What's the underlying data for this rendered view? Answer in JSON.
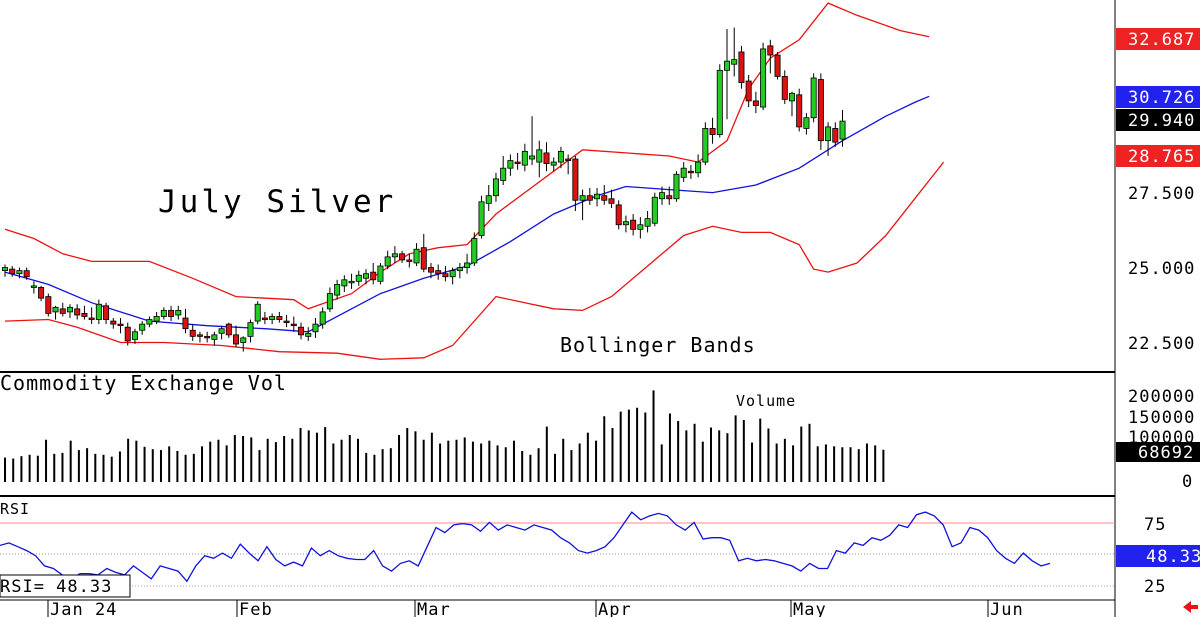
{
  "chart_data": [
    {
      "type": "candlestick",
      "title": "July Silver",
      "annotation": "Bollinger Bands",
      "y_ticks": [
        "22.500",
        "25.000",
        "27.500"
      ],
      "ylim": [
        21.8,
        33.9
      ],
      "x_month_labels": [
        "Jan 24",
        "Feb",
        "Mar",
        "Apr",
        "May",
        "Jun"
      ],
      "price_tags": {
        "upper_band": "32.687",
        "middle_band": "30.726",
        "last": "29.940",
        "lower_band": "28.765"
      },
      "colors": {
        "up": "#22cc22",
        "down": "#dd1111",
        "bands": "#ee1111",
        "ma": "#1111dd",
        "tag_red": "#ee2222",
        "tag_blue": "#2222ee",
        "tag_black": "#000000"
      },
      "candles": [
        [
          25.05,
          25.25,
          24.85,
          25.15
        ],
        [
          25.1,
          25.2,
          24.85,
          24.95
        ],
        [
          24.95,
          25.15,
          24.8,
          25.05
        ],
        [
          25.05,
          25.15,
          24.75,
          24.85
        ],
        [
          24.5,
          24.7,
          24.3,
          24.55
        ],
        [
          24.5,
          24.55,
          24.05,
          24.15
        ],
        [
          24.2,
          24.3,
          23.55,
          23.65
        ],
        [
          23.7,
          23.9,
          23.45,
          23.85
        ],
        [
          23.8,
          24.0,
          23.55,
          23.65
        ],
        [
          23.7,
          23.95,
          23.5,
          23.85
        ],
        [
          23.8,
          23.95,
          23.45,
          23.6
        ],
        [
          23.65,
          23.9,
          23.45,
          23.55
        ],
        [
          23.5,
          23.85,
          23.3,
          23.45
        ],
        [
          23.45,
          24.1,
          23.3,
          23.95
        ],
        [
          23.9,
          24.0,
          23.3,
          23.45
        ],
        [
          23.4,
          23.5,
          23.15,
          23.3
        ],
        [
          23.3,
          23.5,
          23.0,
          23.25
        ],
        [
          23.2,
          23.35,
          22.6,
          22.75
        ],
        [
          22.8,
          23.15,
          22.65,
          23.05
        ],
        [
          23.1,
          23.4,
          22.95,
          23.3
        ],
        [
          23.3,
          23.55,
          23.2,
          23.45
        ],
        [
          23.4,
          23.7,
          23.3,
          23.55
        ],
        [
          23.55,
          23.85,
          23.45,
          23.75
        ],
        [
          23.75,
          23.9,
          23.4,
          23.55
        ],
        [
          23.6,
          23.9,
          23.45,
          23.75
        ],
        [
          23.5,
          23.8,
          23.0,
          23.15
        ],
        [
          23.1,
          23.3,
          22.75,
          22.9
        ],
        [
          22.95,
          23.05,
          22.7,
          22.9
        ],
        [
          22.9,
          23.05,
          22.7,
          22.85
        ],
        [
          22.8,
          23.05,
          22.6,
          22.95
        ],
        [
          23.0,
          23.25,
          22.8,
          23.15
        ],
        [
          23.3,
          23.35,
          22.85,
          22.95
        ],
        [
          22.95,
          23.25,
          22.55,
          22.65
        ],
        [
          22.7,
          22.9,
          22.4,
          22.85
        ],
        [
          22.9,
          23.45,
          22.7,
          23.35
        ],
        [
          23.4,
          24.05,
          23.3,
          23.95
        ],
        [
          23.5,
          23.7,
          23.3,
          23.45
        ],
        [
          23.45,
          23.65,
          23.3,
          23.55
        ],
        [
          23.55,
          23.7,
          23.35,
          23.45
        ],
        [
          23.4,
          23.6,
          23.2,
          23.35
        ],
        [
          23.3,
          23.55,
          23.05,
          23.25
        ],
        [
          23.2,
          23.35,
          22.8,
          22.95
        ],
        [
          22.9,
          23.2,
          22.75,
          23.0
        ],
        [
          23.05,
          23.5,
          22.85,
          23.3
        ],
        [
          23.3,
          23.85,
          23.15,
          23.7
        ],
        [
          23.8,
          24.5,
          23.7,
          24.3
        ],
        [
          24.25,
          24.75,
          24.1,
          24.6
        ],
        [
          24.55,
          24.9,
          24.35,
          24.75
        ],
        [
          24.65,
          24.95,
          24.45,
          24.7
        ],
        [
          24.7,
          25.05,
          24.55,
          24.9
        ],
        [
          24.8,
          25.1,
          24.6,
          24.95
        ],
        [
          25.0,
          25.3,
          24.6,
          24.75
        ],
        [
          24.7,
          25.3,
          24.6,
          25.2
        ],
        [
          25.2,
          25.7,
          25.1,
          25.5
        ],
        [
          25.5,
          25.85,
          25.3,
          25.6
        ],
        [
          25.6,
          25.7,
          25.3,
          25.4
        ],
        [
          25.4,
          25.6,
          25.15,
          25.35
        ],
        [
          25.3,
          25.95,
          25.2,
          25.75
        ],
        [
          25.8,
          26.25,
          25.0,
          25.1
        ],
        [
          25.15,
          25.3,
          24.8,
          25.0
        ],
        [
          25.05,
          25.25,
          24.75,
          24.95
        ],
        [
          24.95,
          25.2,
          24.7,
          24.85
        ],
        [
          24.85,
          25.15,
          24.6,
          25.05
        ],
        [
          25.05,
          25.3,
          24.8,
          25.15
        ],
        [
          25.15,
          25.6,
          24.95,
          25.3
        ],
        [
          25.3,
          26.3,
          25.2,
          26.1
        ],
        [
          26.2,
          27.5,
          26.1,
          27.3
        ],
        [
          27.25,
          27.85,
          27.0,
          27.5
        ],
        [
          27.5,
          28.25,
          27.3,
          28.05
        ],
        [
          28.0,
          28.8,
          27.85,
          28.4
        ],
        [
          28.4,
          28.85,
          28.15,
          28.65
        ],
        [
          28.6,
          28.9,
          28.35,
          28.55
        ],
        [
          28.5,
          29.2,
          28.3,
          28.95
        ],
        [
          28.7,
          30.1,
          28.5,
          28.8
        ],
        [
          28.6,
          29.3,
          28.1,
          29.0
        ],
        [
          28.9,
          29.25,
          28.3,
          28.55
        ],
        [
          28.5,
          28.75,
          28.3,
          28.6
        ],
        [
          28.6,
          29.1,
          28.4,
          28.95
        ],
        [
          28.7,
          28.85,
          28.2,
          28.65
        ],
        [
          28.7,
          28.8,
          27.0,
          27.35
        ],
        [
          27.35,
          27.7,
          26.7,
          27.5
        ],
        [
          27.5,
          27.75,
          27.2,
          27.35
        ],
        [
          27.4,
          27.75,
          27.15,
          27.55
        ],
        [
          27.5,
          27.85,
          27.2,
          27.35
        ],
        [
          27.4,
          27.7,
          27.1,
          27.25
        ],
        [
          27.2,
          27.35,
          26.4,
          26.55
        ],
        [
          26.55,
          26.85,
          26.3,
          26.65
        ],
        [
          26.7,
          26.9,
          26.2,
          26.4
        ],
        [
          26.4,
          26.8,
          26.1,
          26.55
        ],
        [
          26.5,
          27.0,
          26.3,
          26.75
        ],
        [
          26.6,
          27.6,
          26.5,
          27.45
        ],
        [
          27.4,
          27.8,
          27.2,
          27.6
        ],
        [
          27.5,
          27.8,
          27.2,
          27.4
        ],
        [
          27.4,
          28.3,
          27.3,
          28.2
        ],
        [
          28.1,
          28.6,
          27.95,
          28.4
        ],
        [
          28.3,
          28.5,
          28.05,
          28.25
        ],
        [
          28.25,
          28.85,
          28.1,
          28.6
        ],
        [
          28.6,
          29.9,
          28.5,
          29.7
        ],
        [
          29.7,
          30.05,
          29.2,
          29.5
        ],
        [
          29.5,
          31.8,
          29.4,
          31.6
        ],
        [
          31.6,
          32.95,
          30.0,
          31.9
        ],
        [
          31.8,
          33.0,
          31.4,
          31.95
        ],
        [
          32.2,
          32.4,
          31.0,
          31.2
        ],
        [
          31.25,
          31.45,
          30.4,
          30.6
        ],
        [
          30.6,
          30.9,
          30.2,
          30.45
        ],
        [
          30.4,
          32.5,
          30.3,
          32.3
        ],
        [
          32.4,
          32.6,
          31.5,
          32.1
        ],
        [
          32.1,
          32.2,
          31.3,
          31.4
        ],
        [
          31.4,
          31.6,
          30.5,
          30.65
        ],
        [
          30.6,
          30.9,
          30.1,
          30.85
        ],
        [
          30.8,
          31.0,
          29.6,
          29.75
        ],
        [
          29.7,
          30.2,
          29.5,
          30.05
        ],
        [
          30.05,
          31.5,
          29.9,
          31.35
        ],
        [
          31.3,
          31.5,
          29.0,
          29.3
        ],
        [
          29.3,
          29.9,
          28.8,
          29.75
        ],
        [
          29.7,
          29.9,
          29.1,
          29.25
        ],
        [
          29.35,
          30.3,
          29.1,
          29.94
        ]
      ],
      "upper_band": [
        [
          0,
          26.4
        ],
        [
          4,
          26.1
        ],
        [
          8,
          25.6
        ],
        [
          12,
          25.35
        ],
        [
          20,
          25.35
        ],
        [
          26,
          24.8
        ],
        [
          32,
          24.2
        ],
        [
          40,
          24.1
        ],
        [
          42,
          23.8
        ],
        [
          48,
          24.3
        ],
        [
          52,
          25.0
        ],
        [
          56,
          25.6
        ],
        [
          60,
          25.8
        ],
        [
          64,
          25.9
        ],
        [
          68,
          26.9
        ],
        [
          72,
          27.6
        ],
        [
          76,
          28.3
        ],
        [
          80,
          29.0
        ],
        [
          86,
          28.9
        ],
        [
          92,
          28.8
        ],
        [
          96,
          28.6
        ],
        [
          100,
          29.3
        ],
        [
          103,
          31.0
        ],
        [
          106,
          32.0
        ],
        [
          110,
          32.6
        ],
        [
          114,
          33.8
        ],
        [
          118,
          33.4
        ],
        [
          124,
          32.9
        ],
        [
          128,
          32.7
        ]
      ],
      "middle_band": [
        [
          0,
          25.0
        ],
        [
          6,
          24.6
        ],
        [
          12,
          24.0
        ],
        [
          20,
          23.4
        ],
        [
          28,
          23.25
        ],
        [
          36,
          23.15
        ],
        [
          42,
          23.05
        ],
        [
          48,
          23.8
        ],
        [
          52,
          24.3
        ],
        [
          58,
          24.8
        ],
        [
          64,
          25.2
        ],
        [
          70,
          26.0
        ],
        [
          76,
          26.9
        ],
        [
          82,
          27.5
        ],
        [
          86,
          27.8
        ],
        [
          92,
          27.7
        ],
        [
          98,
          27.6
        ],
        [
          104,
          27.85
        ],
        [
          110,
          28.4
        ],
        [
          116,
          29.3
        ],
        [
          122,
          30.1
        ],
        [
          126,
          30.55
        ],
        [
          128,
          30.75
        ]
      ],
      "lower_band": [
        [
          0,
          23.4
        ],
        [
          6,
          23.45
        ],
        [
          10,
          23.2
        ],
        [
          16,
          22.7
        ],
        [
          22,
          22.7
        ],
        [
          30,
          22.6
        ],
        [
          38,
          22.4
        ],
        [
          46,
          22.35
        ],
        [
          52,
          22.15
        ],
        [
          58,
          22.2
        ],
        [
          62,
          22.6
        ],
        [
          68,
          24.2
        ],
        [
          72,
          24.0
        ],
        [
          76,
          23.8
        ],
        [
          80,
          23.75
        ],
        [
          84,
          24.2
        ],
        [
          88,
          25.0
        ],
        [
          94,
          26.2
        ],
        [
          98,
          26.5
        ],
        [
          102,
          26.3
        ],
        [
          106,
          26.3
        ],
        [
          110,
          25.9
        ],
        [
          112,
          25.1
        ],
        [
          114,
          25.0
        ],
        [
          118,
          25.3
        ],
        [
          122,
          26.2
        ],
        [
          126,
          27.4
        ],
        [
          128,
          28.0
        ],
        [
          130,
          28.6
        ]
      ]
    },
    {
      "type": "bar",
      "title": "Commodity Exchange Vol",
      "annotation": "Volume",
      "y_ticks": [
        "200000",
        "150000",
        "100000",
        "0"
      ],
      "ylim": [
        0,
        230000
      ],
      "last_tag": "68692",
      "values": [
        52000,
        50000,
        55000,
        58000,
        56000,
        90000,
        60000,
        62000,
        88000,
        68000,
        72000,
        60000,
        58000,
        54000,
        65000,
        92000,
        88000,
        75000,
        70000,
        68000,
        76000,
        66000,
        58000,
        60000,
        76000,
        86000,
        90000,
        78000,
        100000,
        98000,
        95000,
        68000,
        92000,
        85000,
        98000,
        92000,
        115000,
        110000,
        105000,
        117000,
        82000,
        90000,
        100000,
        92000,
        62000,
        58000,
        70000,
        72000,
        100000,
        115000,
        108000,
        90000,
        105000,
        82000,
        88000,
        90000,
        95000,
        86000,
        82000,
        88000,
        78000,
        74000,
        88000,
        66000,
        58000,
        72000,
        118000,
        60000,
        92000,
        68000,
        82000,
        105000,
        88000,
        140000,
        115000,
        150000,
        154000,
        158000,
        148000,
        195000,
        80000,
        146000,
        130000,
        110000,
        124000,
        86000,
        116000,
        110000,
        104000,
        142000,
        132000,
        84000,
        135000,
        114000,
        82000,
        92000,
        78000,
        118000,
        124000,
        76000,
        80000,
        76000,
        74000,
        74000,
        70000,
        82000,
        78000,
        68692
      ]
    },
    {
      "type": "line",
      "title": "RSI",
      "y_ticks": [
        "75",
        "25"
      ],
      "ylim": [
        15,
        93
      ],
      "readout": "RSI=   48.33",
      "last_tag": "48.33",
      "values": [
        56,
        58,
        55,
        52,
        48,
        40,
        38,
        33,
        30,
        34,
        34,
        33,
        38,
        35,
        33,
        40,
        35,
        30,
        40,
        38,
        36,
        28,
        40,
        48,
        46,
        50,
        46,
        57,
        50,
        44,
        55,
        45,
        40,
        43,
        40,
        54,
        48,
        52,
        48,
        46,
        45,
        45,
        52,
        40,
        36,
        42,
        44,
        40,
        55,
        70,
        66,
        72,
        73,
        72,
        67,
        74,
        68,
        72,
        70,
        68,
        72,
        70,
        68,
        62,
        58,
        52,
        50,
        52,
        55,
        62,
        72,
        82,
        76,
        79,
        81,
        79,
        72,
        68,
        74,
        61,
        62,
        62,
        60,
        44,
        46,
        44,
        45,
        44,
        42,
        40,
        36,
        42,
        38,
        38,
        52,
        50,
        58,
        56,
        62,
        60,
        64,
        72,
        70,
        80,
        82,
        79,
        72,
        55,
        58,
        70,
        68,
        62,
        52,
        46,
        42,
        50,
        44,
        40,
        42
      ],
      "ref_lines": [
        75,
        50,
        25
      ]
    }
  ]
}
